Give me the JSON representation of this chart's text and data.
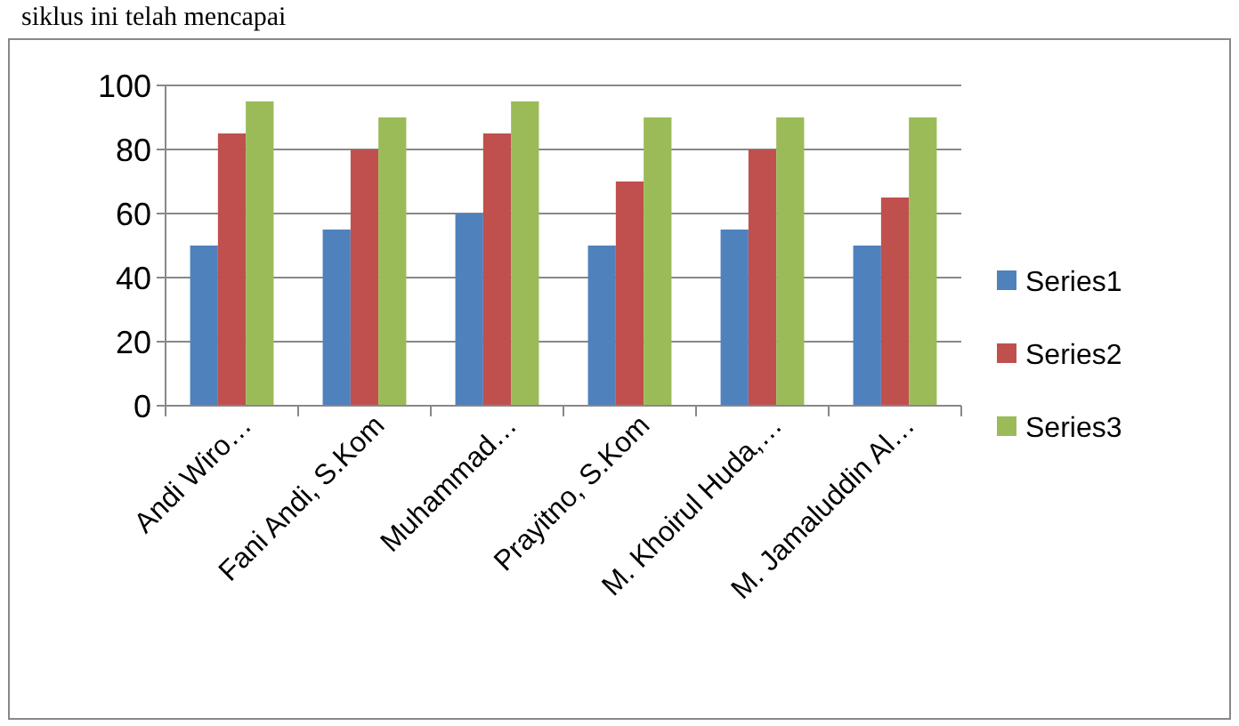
{
  "chart_data": {
    "type": "bar",
    "annotations": [
      "siklus ini telah mencapai"
    ],
    "categories": [
      "Andi Wiro…",
      "Fani Andi, S.Kom",
      "Muhammad…",
      "Prayitno, S.Kom",
      "M. Khoirul Huda,…",
      "M. Jamaluddin Al…"
    ],
    "series": [
      {
        "name": "Series1",
        "color": "#4f81bd",
        "values": [
          50,
          55,
          60,
          50,
          55,
          50
        ]
      },
      {
        "name": "Series2",
        "color": "#c0504d",
        "values": [
          85,
          80,
          85,
          70,
          80,
          65
        ]
      },
      {
        "name": "Series3",
        "color": "#9bbb59",
        "values": [
          95,
          90,
          95,
          90,
          90,
          90
        ]
      }
    ],
    "ylim": [
      0,
      100
    ],
    "yticks": [
      0,
      20,
      40,
      60,
      80,
      100
    ],
    "grid": "y",
    "legend": "right"
  }
}
